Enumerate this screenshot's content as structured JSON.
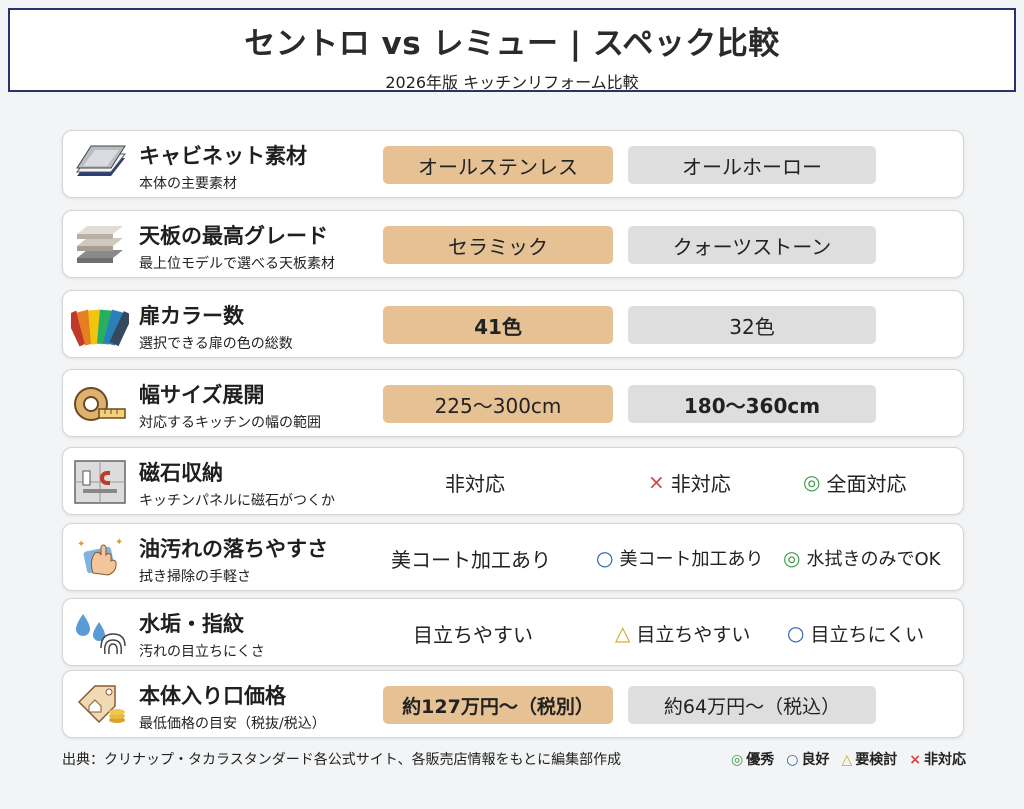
{
  "header": {
    "title": "セントロ vs レミュー | スペック比較",
    "subtitle": "2026年版 キッチンリフォーム比較"
  },
  "rows": [
    {
      "name": "キャビネット素材",
      "desc": "本体の主要素材",
      "icon": "stainless-sheet-icon",
      "c1": "オールステンレス",
      "c2": "オールホーロー"
    },
    {
      "name": "天板の最高グレード",
      "desc": "最上位モデルで選べる天板素材",
      "icon": "countertop-slabs-icon",
      "c1": "セラミック",
      "c2": "クォーツストーン"
    },
    {
      "name": "扉カラー数",
      "desc": "選択できる扉の色の総数",
      "icon": "color-swatches-icon",
      "c1": "41色",
      "c2": "32色"
    },
    {
      "name": "幅サイズ展開",
      "desc": "対応するキッチンの幅の範囲",
      "icon": "tape-measure-icon",
      "c1": "225〜300cm",
      "c2": "180〜360cm"
    },
    {
      "name": "磁石収納",
      "desc": "キッチンパネルに磁石がつくか",
      "icon": "magnet-panel-icon",
      "c0": "非対応",
      "c1": "非対応",
      "c2": "全面対応"
    },
    {
      "name": "油汚れの落ちやすさ",
      "desc": "拭き掃除の手軽さ",
      "icon": "wiping-hand-icon",
      "c0": "美コート加工あり",
      "c1": "美コート加工あり",
      "c2": "水拭きのみでOK"
    },
    {
      "name": "水垢・指紋",
      "desc": "汚れの目立ちにくさ",
      "icon": "water-drop-fingerprint-icon",
      "c0": "目立ちやすい",
      "c1": "目立ちやすい",
      "c2": "目立ちにくい"
    },
    {
      "name": "本体入り口価格",
      "desc": "最低価格の目安（税抜/税込）",
      "icon": "price-tag-icon",
      "c1": "約127万円〜（税別）",
      "c2": "約64万円〜（税込）"
    }
  ],
  "marks": {
    "excellent": "◎",
    "good": "○",
    "consider": "△",
    "none": "×"
  },
  "footer": {
    "source": "出典：クリナップ・タカラスタンダード各公式サイト、各販売店情報をもとに編集部作成",
    "legend": [
      {
        "symbol": "◎",
        "label": "優秀",
        "color": "#3f9a4c"
      },
      {
        "symbol": "○",
        "label": "良好",
        "color": "#2a62b8"
      },
      {
        "symbol": "△",
        "label": "要検討",
        "color": "#d4a417"
      },
      {
        "symbol": "×",
        "label": "非対応",
        "color": "#d94040"
      }
    ]
  }
}
